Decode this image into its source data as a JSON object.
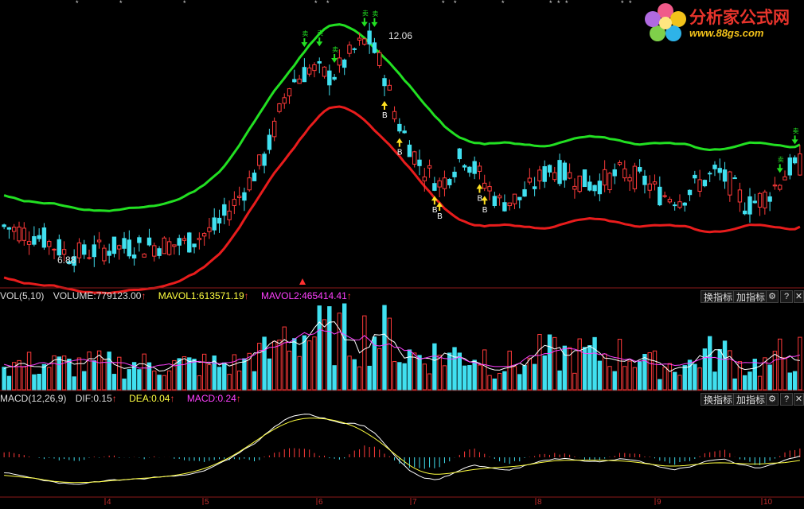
{
  "logo": {
    "name_cn": "分析家公式网",
    "url": "www.88gs.com",
    "icon": "flower-icon"
  },
  "price_panel": {
    "high_label": "12.06",
    "low_label": "6.88"
  },
  "vol_panel": {
    "name": "VOL(5,10)",
    "volume": "VOLUME:779123.00",
    "mavol1": "MAVOL1:613571.19",
    "mavol2": "MAVOL2:465414.41",
    "arrow": "↑"
  },
  "macd_panel": {
    "name": "MACD(12,26,9)",
    "dif": "DIF:0.15",
    "dea": "DEA:0.04",
    "macd": "MACD:0.24",
    "arrow": "↑"
  },
  "buttons": {
    "switch": "换指标",
    "add": "加指标",
    "gear_icon": "gear-icon",
    "help": "?",
    "close": "✕"
  },
  "x_axis": {
    "ticks": [
      "4",
      "5",
      "6",
      "7",
      "8",
      "9",
      "10"
    ]
  },
  "colors": {
    "up": "#ff3a3a",
    "down": "#40e0f0",
    "upper_band": "#22e022",
    "lower_band": "#e81c1c",
    "mavol1": "#ffffff",
    "mavol2": "#ff40ff",
    "dea_color": "#ffff40",
    "macd_color": "#ff40ff"
  },
  "chart_data": {
    "type": "candlestick",
    "candle_count": 160,
    "y_range": [
      6.2,
      12.6
    ],
    "key_levels": {
      "high": 12.06,
      "low": 6.88
    },
    "buy_signal_label": "B",
    "sell_signal_label": "卖"
  }
}
